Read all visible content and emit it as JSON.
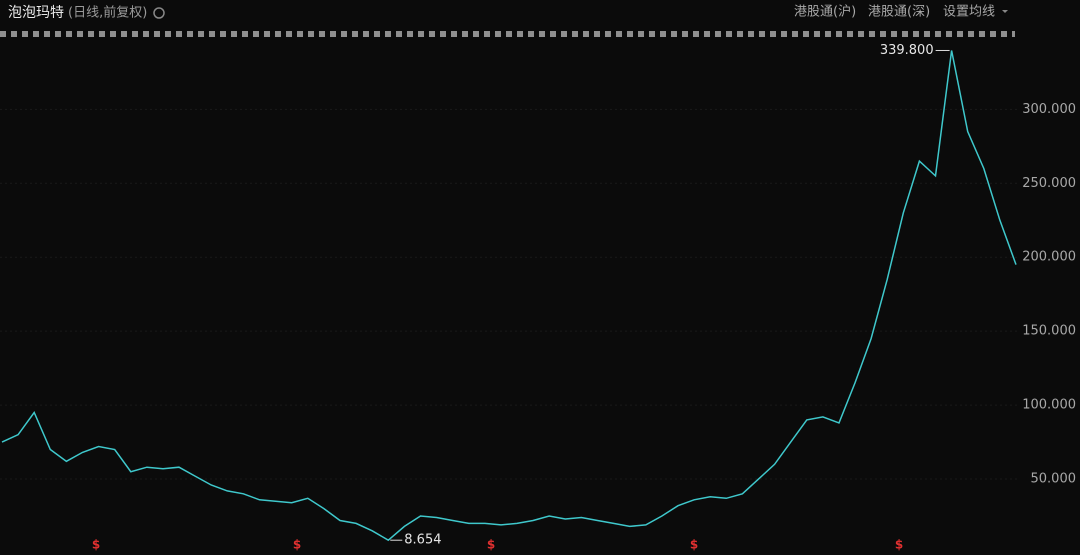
{
  "header": {
    "title": "泡泡玛特",
    "subtitle": "(日线,前复权)",
    "buttons": [
      "港股通(沪)",
      "港股通(深)",
      "设置均线"
    ]
  },
  "chart_data": {
    "type": "line",
    "color": "#3fc8cc",
    "values": [
      75,
      80,
      95,
      70,
      62,
      68,
      72,
      70,
      55,
      58,
      57,
      58,
      52,
      46,
      42,
      40,
      36,
      35,
      34,
      37,
      30,
      22,
      20,
      15,
      8.654,
      18,
      25,
      24,
      22,
      20,
      20,
      19,
      20,
      22,
      25,
      23,
      24,
      22,
      20,
      18,
      19,
      25,
      32,
      36,
      38,
      37,
      40,
      50,
      60,
      75,
      90,
      92,
      88,
      115,
      145,
      185,
      230,
      265,
      255,
      339.8,
      285,
      260,
      225,
      195
    ],
    "ylim": [
      0,
      355
    ],
    "yticks": [
      {
        "value": 50,
        "label": "50.000"
      },
      {
        "value": 100,
        "label": "100.000"
      },
      {
        "value": 150,
        "label": "150.000"
      },
      {
        "value": 200,
        "label": "200.000"
      },
      {
        "value": 250,
        "label": "250.000"
      },
      {
        "value": 300,
        "label": "300.000"
      }
    ],
    "grid": true,
    "annotations": [
      "339.800",
      "8.654"
    ],
    "markers": [
      "$",
      "$",
      "$",
      "$",
      "$"
    ]
  }
}
